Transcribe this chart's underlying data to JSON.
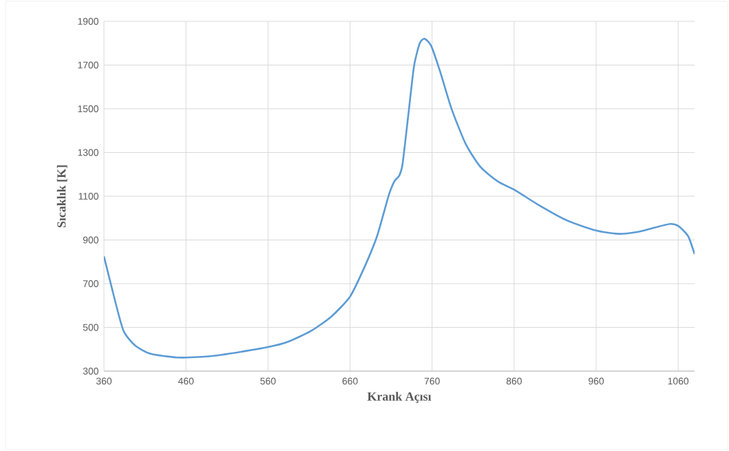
{
  "chart_data": {
    "type": "line",
    "xlabel": "Krank Açısı",
    "ylabel": "Sıcaklık [K]",
    "x": [
      360,
      374,
      384,
      398,
      416,
      444,
      460,
      496,
      531,
      560,
      584,
      612,
      637,
      660,
      678,
      693,
      707,
      714,
      720,
      724,
      731,
      738,
      745,
      751,
      759,
      770,
      784,
      801,
      819,
      840,
      861,
      889,
      924,
      959,
      987,
      1011,
      1029,
      1050,
      1060,
      1072,
      1080
    ],
    "series": [
      {
        "color": "#5b9bd5",
        "values": [
          825,
          615,
          483,
          417,
          380,
          364,
          362,
          371,
          391,
          410,
          434,
          483,
          549,
          641,
          779,
          918,
          1102,
          1168,
          1194,
          1247,
          1471,
          1695,
          1800,
          1820,
          1787,
          1668,
          1497,
          1339,
          1234,
          1168,
          1128,
          1062,
          990,
          944,
          928,
          937,
          954,
          973,
          964,
          918,
          835
        ]
      }
    ],
    "xlim": [
      360,
      1080
    ],
    "ylim": [
      300,
      1900
    ],
    "xticks": [
      360,
      460,
      560,
      660,
      760,
      860,
      960,
      1060
    ],
    "yticks": [
      300,
      500,
      700,
      900,
      1100,
      1300,
      1500,
      1700,
      1900
    ],
    "grid": true,
    "marker": "none",
    "line_style": "solid"
  }
}
